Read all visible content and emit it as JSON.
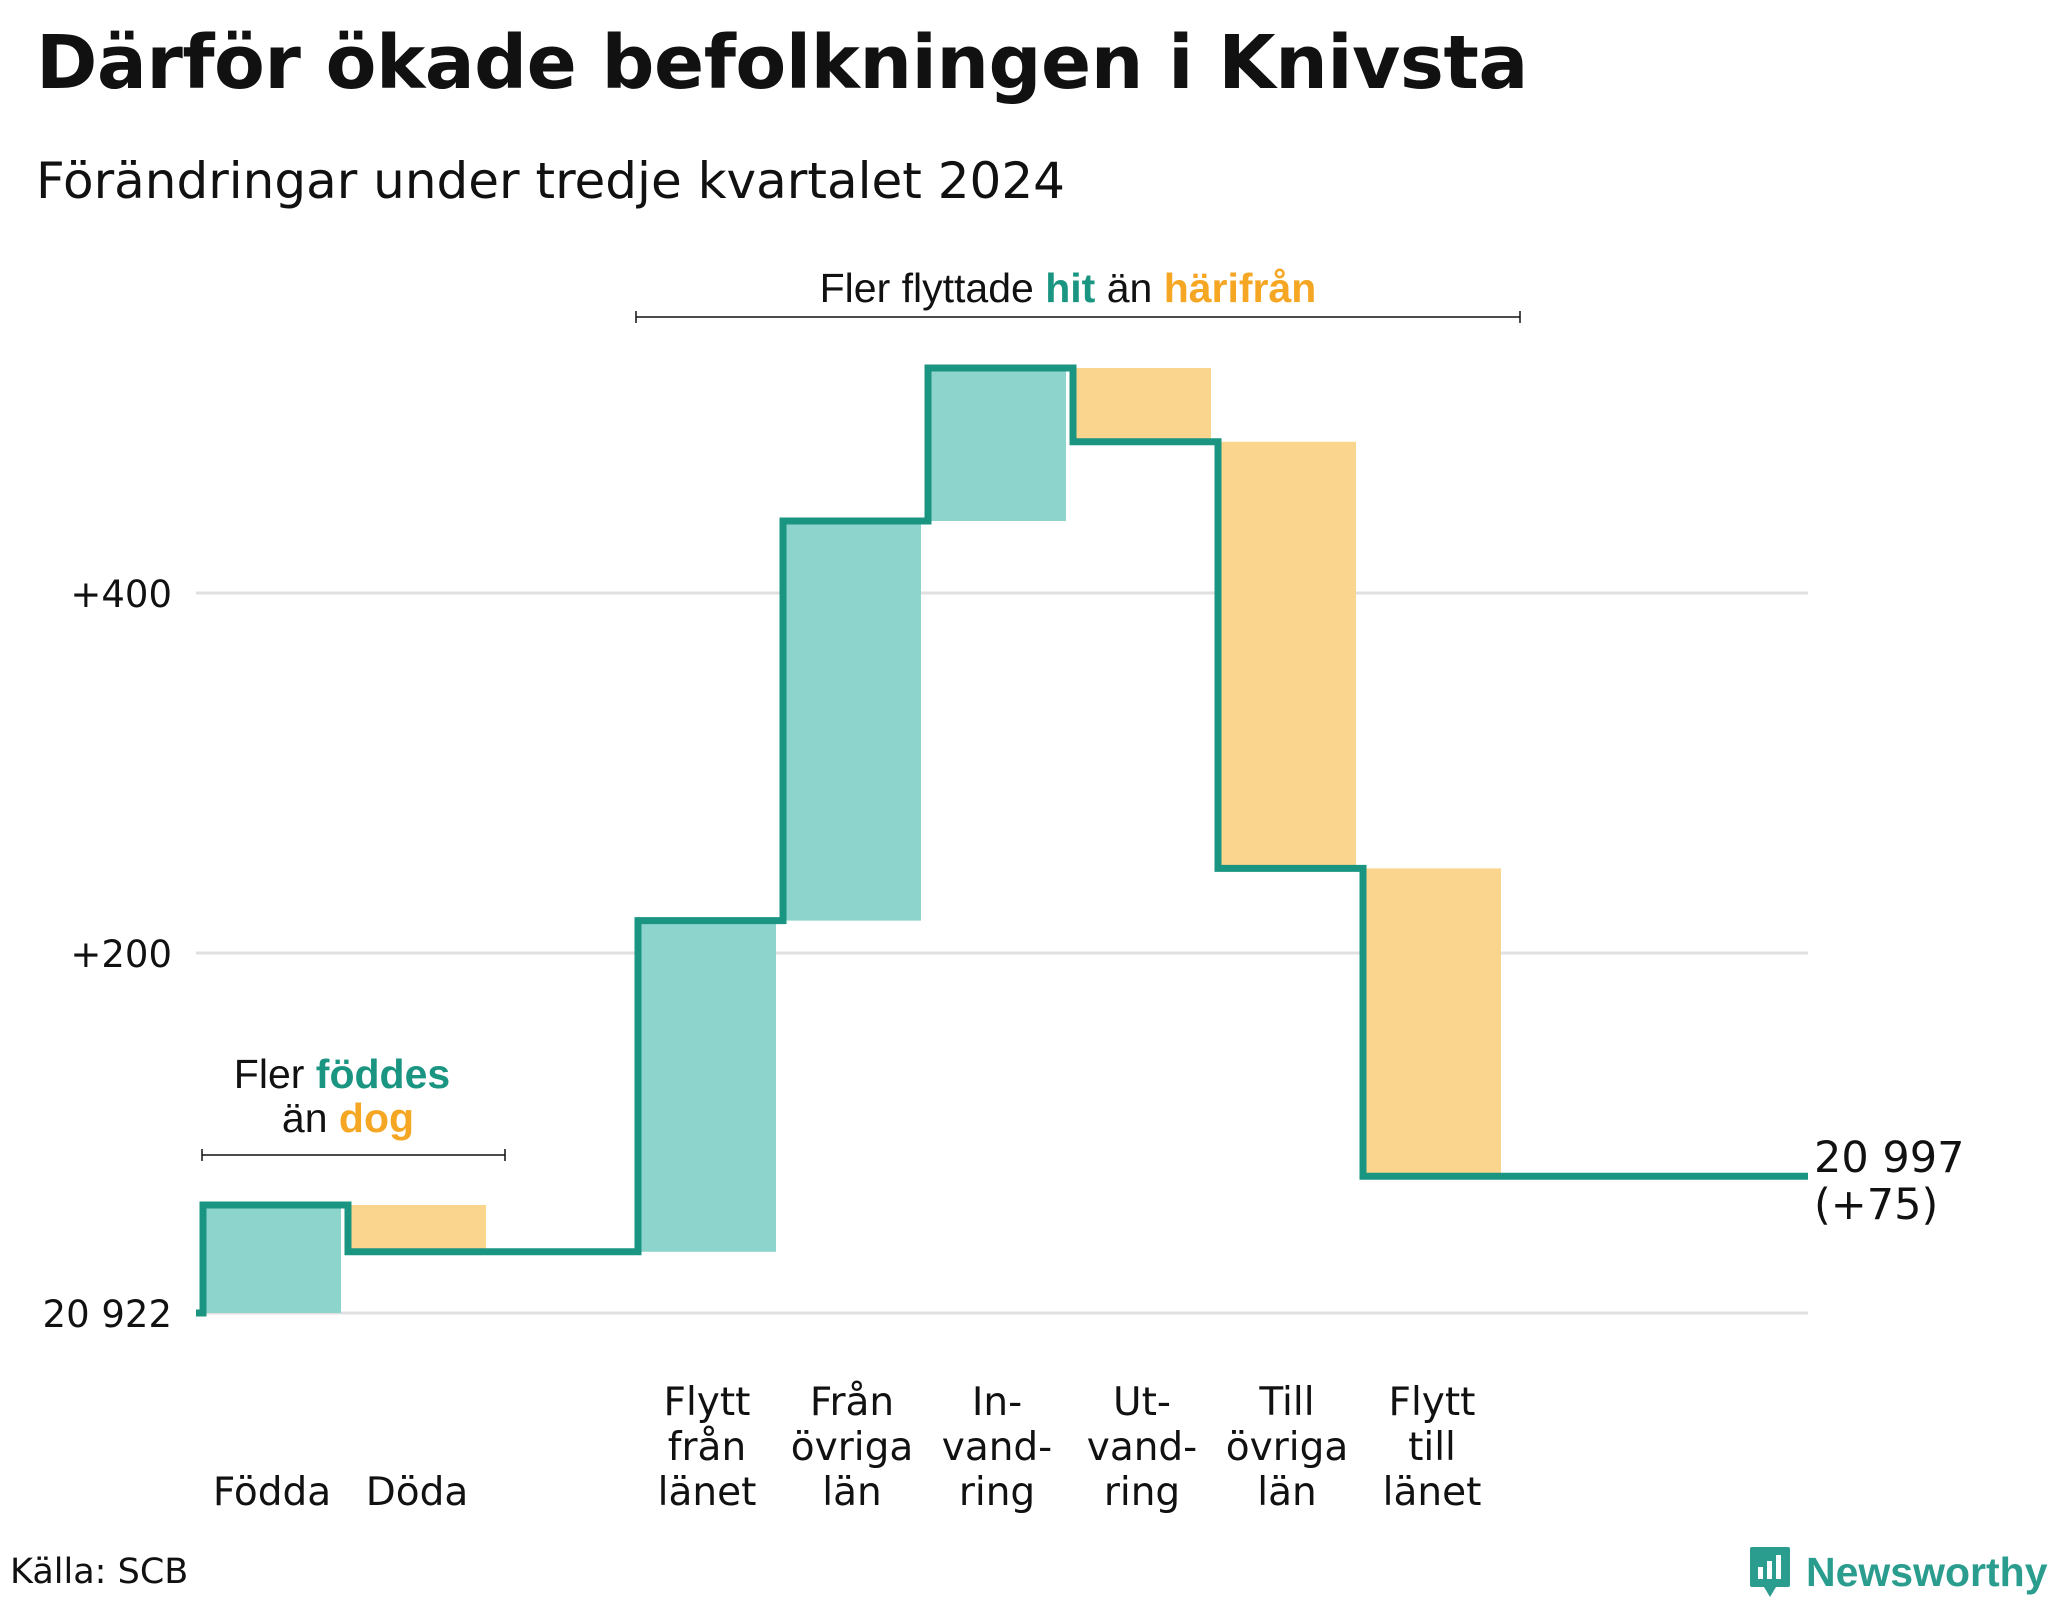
{
  "title": "Därför ökade befolkningen i Knivsta",
  "subtitle": "Förändringar under tredje kvartalet 2024",
  "source": "Källa: SCB",
  "brand": {
    "name": "Newsworthy",
    "icon": "newsworthy-logo-icon"
  },
  "colors": {
    "increase": "#8dd4cc",
    "decrease": "#fad58d",
    "line": "#1a9582",
    "accent_teal": "#1a9582",
    "accent_orange": "#f5a623",
    "grid": "#e0e0e0"
  },
  "annotations": {
    "births": {
      "line1_pre": "Fler ",
      "line1_em": "föddes",
      "line2_pre": "än ",
      "line2_em": "dog"
    },
    "moves": {
      "pre": "Fler flyttade ",
      "em1": "hit",
      "mid": " än ",
      "em2": "härifrån"
    }
  },
  "end_label": {
    "value": "20 997",
    "change": "(+75)"
  },
  "chart_data": {
    "type": "waterfall",
    "baseline": 20922,
    "start_label": "20 922",
    "y_ticks": [
      {
        "value": 0,
        "label": "20 922"
      },
      {
        "value": 200,
        "label": "+200"
      },
      {
        "value": 400,
        "label": "+400"
      }
    ],
    "ylim": [
      0,
      530
    ],
    "grid": true,
    "steps": [
      {
        "label": [
          "Födda"
        ],
        "delta": 60
      },
      {
        "label": [
          "Döda"
        ],
        "delta": -26
      },
      {
        "label": [],
        "delta": 0
      },
      {
        "label": [
          "Flytt",
          "från",
          "länet"
        ],
        "delta": 184
      },
      {
        "label": [
          "Från",
          "övriga",
          "län"
        ],
        "delta": 222
      },
      {
        "label": [
          "In-",
          "vand-",
          "ring"
        ],
        "delta": 85
      },
      {
        "label": [
          "Ut-",
          "vand-",
          "ring"
        ],
        "delta": -41
      },
      {
        "label": [
          "Till",
          "övriga",
          "län"
        ],
        "delta": -237
      },
      {
        "label": [
          "Flytt",
          "till",
          "länet"
        ],
        "delta": -171
      }
    ],
    "end_value": 75
  }
}
